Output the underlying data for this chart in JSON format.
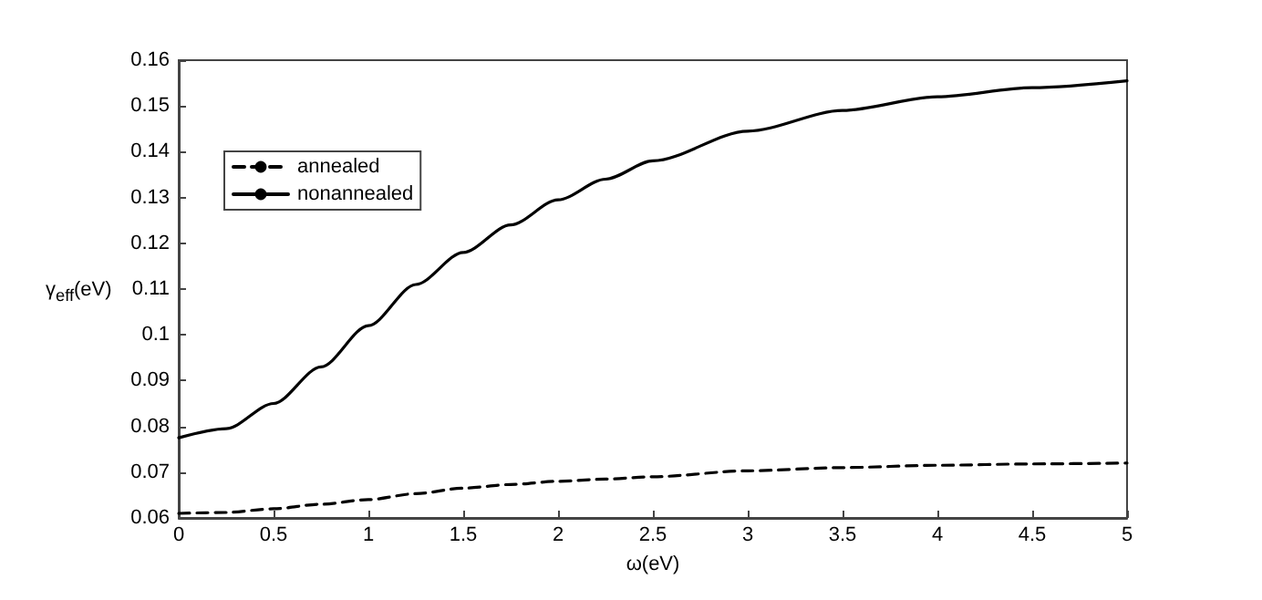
{
  "chart_data": {
    "type": "line",
    "xlabel": "ω(eV)",
    "ylabel": "γ$_{eff}$(eV)",
    "x": [
      0,
      0.25,
      0.5,
      0.75,
      1,
      1.25,
      1.5,
      1.75,
      2,
      2.25,
      2.5,
      3,
      3.5,
      4,
      4.5,
      5
    ],
    "series": [
      {
        "name": "annealed",
        "color": "#000000",
        "line_style": "dashed",
        "values": [
          0.061,
          0.0612,
          0.062,
          0.063,
          0.064,
          0.0653,
          0.0665,
          0.0673,
          0.068,
          0.0685,
          0.069,
          0.0703,
          0.071,
          0.0715,
          0.0718,
          0.072
        ]
      },
      {
        "name": "nonannealed",
        "color": "#000000",
        "line_style": "solid",
        "values": [
          0.0775,
          0.0795,
          0.085,
          0.093,
          0.102,
          0.111,
          0.118,
          0.124,
          0.1295,
          0.134,
          0.138,
          0.1445,
          0.149,
          0.152,
          0.154,
          0.1555
        ]
      }
    ],
    "xlim": [
      0,
      5
    ],
    "xticks": [
      0,
      0.5,
      1,
      1.5,
      2,
      2.5,
      3,
      3.5,
      4,
      4.5,
      5
    ],
    "ylim": [
      0.06,
      0.16
    ],
    "yticks": [
      0.06,
      0.07,
      0.08,
      0.09,
      0.1,
      0.11,
      0.12,
      0.13,
      0.14,
      0.15,
      0.16
    ],
    "legend": "top left",
    "grid": false,
    "marker": "none"
  }
}
